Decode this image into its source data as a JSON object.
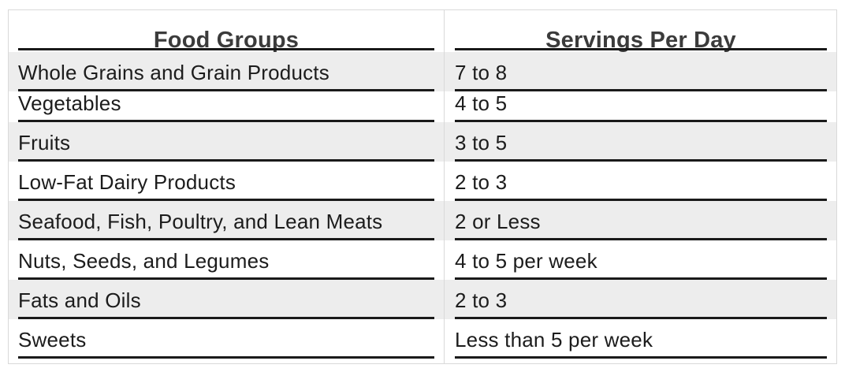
{
  "table": {
    "headers": {
      "food_groups": "Food Groups",
      "servings": "Servings Per Day"
    },
    "rows": [
      {
        "food_group": "Whole Grains and Grain Products",
        "servings": "7 to 8"
      },
      {
        "food_group": "Vegetables",
        "servings": "4 to 5"
      },
      {
        "food_group": "Fruits",
        "servings": "3 to 5"
      },
      {
        "food_group": "Low-Fat Dairy Products",
        "servings": "2 to 3"
      },
      {
        "food_group": "Seafood, Fish, Poultry, and Lean Meats",
        "servings": "2 or Less"
      },
      {
        "food_group": "Nuts, Seeds, and Legumes",
        "servings": "4 to 5 per week"
      },
      {
        "food_group": "Fats and Oils",
        "servings": "2 to 3"
      },
      {
        "food_group": "Sweets",
        "servings": "Less than 5 per week"
      }
    ]
  }
}
